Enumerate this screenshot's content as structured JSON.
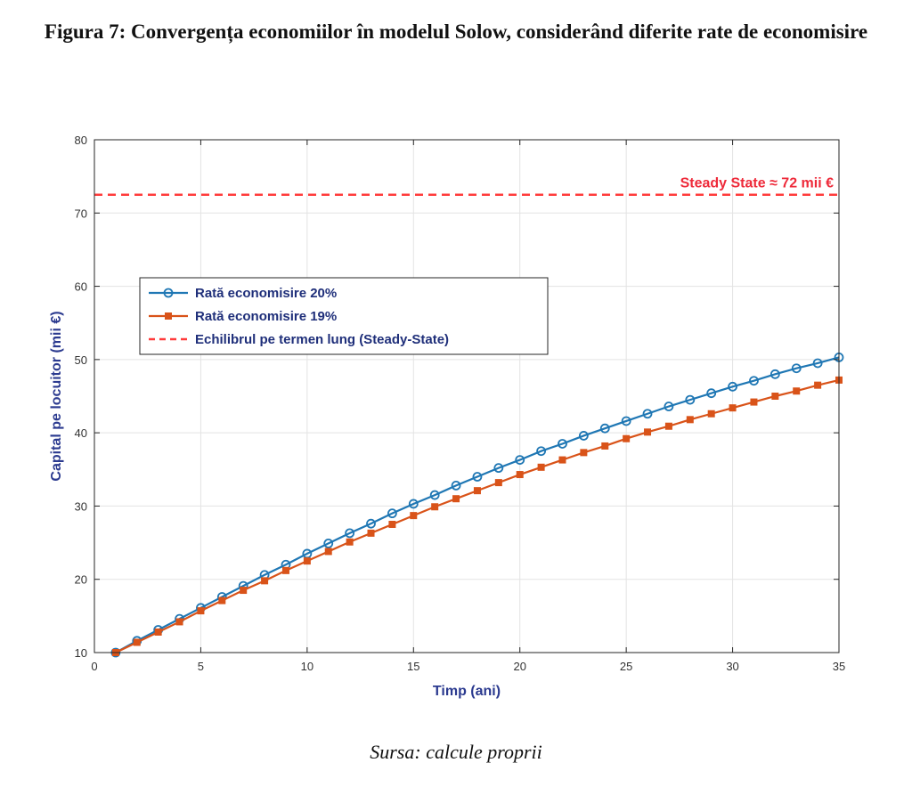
{
  "figure": {
    "title": "Figura 7: Convergența economiilor în modelul Solow, considerând diferite rate de economisire",
    "source": "Sursa: calcule proprii"
  },
  "chart_data": {
    "type": "line",
    "xlabel": "Timp (ani)",
    "ylabel": "Capital pe locuitor (mii €)",
    "xlim": [
      0,
      35
    ],
    "ylim": [
      10,
      80
    ],
    "xticks": [
      0,
      5,
      10,
      15,
      20,
      25,
      30,
      35
    ],
    "yticks": [
      10,
      20,
      30,
      40,
      50,
      60,
      70,
      80
    ],
    "grid": true,
    "legend_placement": "center-left",
    "x": [
      1,
      2,
      3,
      4,
      5,
      6,
      7,
      8,
      9,
      10,
      11,
      12,
      13,
      14,
      15,
      16,
      17,
      18,
      19,
      20,
      21,
      22,
      23,
      24,
      25,
      26,
      27,
      28,
      29,
      30,
      31,
      32,
      33,
      34,
      35
    ],
    "series": [
      {
        "name": "Rată economisire 20%",
        "color": "#1f77b4",
        "marker": "circle",
        "values": [
          10.0,
          11.6,
          13.1,
          14.6,
          16.1,
          17.6,
          19.1,
          20.6,
          22.0,
          23.5,
          24.9,
          26.3,
          27.6,
          29.0,
          30.3,
          31.5,
          32.8,
          34.0,
          35.2,
          36.3,
          37.5,
          38.5,
          39.6,
          40.6,
          41.6,
          42.6,
          43.6,
          44.5,
          45.4,
          46.3,
          47.1,
          48.0,
          48.8,
          49.5,
          50.3
        ]
      },
      {
        "name": "Rată economisire 19%",
        "color": "#d95319",
        "marker": "square",
        "values": [
          10.0,
          11.4,
          12.8,
          14.2,
          15.7,
          17.1,
          18.5,
          19.8,
          21.2,
          22.5,
          23.8,
          25.1,
          26.3,
          27.5,
          28.7,
          29.9,
          31.0,
          32.1,
          33.2,
          34.3,
          35.3,
          36.3,
          37.3,
          38.2,
          39.2,
          40.1,
          40.9,
          41.8,
          42.6,
          43.4,
          44.2,
          45.0,
          45.7,
          46.5,
          47.2
        ]
      }
    ],
    "reference_line": {
      "name": "Echilibrul pe termen lung (Steady-State)",
      "y": 72.5,
      "color": "#ff3b3b",
      "style": "dashed",
      "annotation": "Steady State ≈ 72 mii €"
    }
  }
}
